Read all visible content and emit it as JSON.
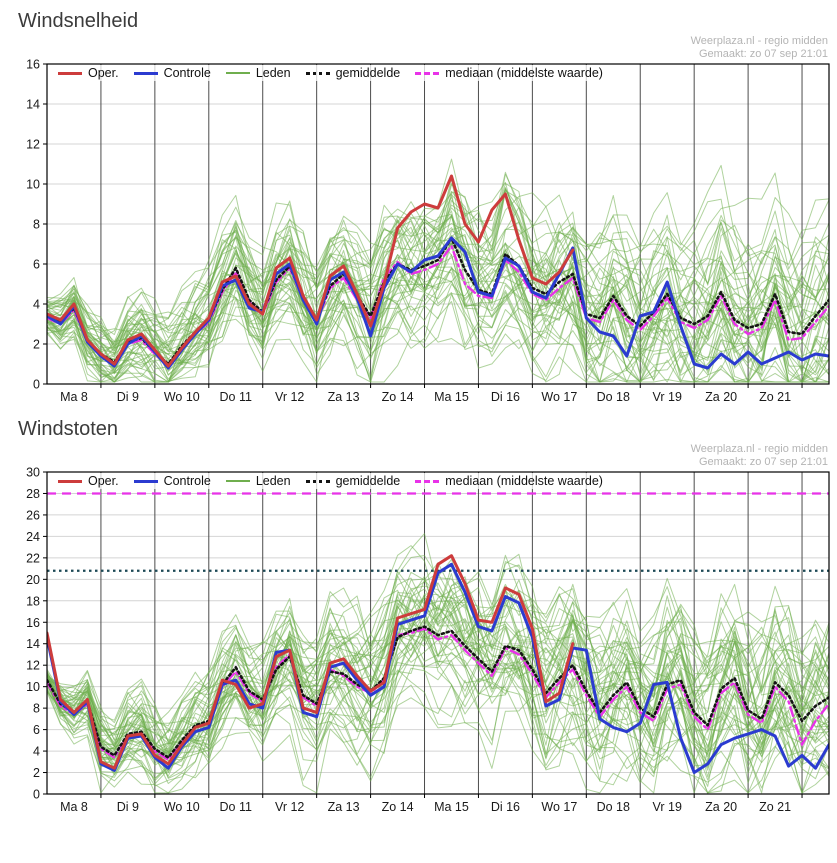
{
  "watermark": {
    "line1": "Weerplaza.nl - regio midden",
    "line2": "Gemaakt: zo 07 sep 21:01"
  },
  "legend": {
    "items": [
      {
        "key": "oper",
        "label": "Oper."
      },
      {
        "key": "controle",
        "label": "Controle"
      },
      {
        "key": "leden",
        "label": "Leden"
      },
      {
        "key": "gemiddelde",
        "label": "gemiddelde"
      },
      {
        "key": "mediaan",
        "label": "mediaan (middelste waarde)"
      }
    ]
  },
  "colors": {
    "oper": "#cd3c3c",
    "controle": "#2b3bd0",
    "leden": "#6fae4e",
    "gemiddelde": "#141414",
    "mediaan": "#e832e8",
    "threshold_dark": "#1d4956",
    "grid": "#d4d4d4",
    "dayline": "#4c4c4c",
    "axis": "#000000",
    "tick_text": "#1a1a1a"
  },
  "chart_data": [
    {
      "type": "line",
      "title": "Windsnelheid",
      "ylim": [
        0,
        16
      ],
      "ytick_step": 2,
      "points_per_day": 4,
      "n_points": 59,
      "x_day_labels": [
        "Ma 8",
        "Di 9",
        "Wo 10",
        "Do 11",
        "Vr 12",
        "Za 13",
        "Zo 14",
        "Ma 15",
        "Di 16",
        "Wo 17",
        "Do 18",
        "Vr 19",
        "Za 20",
        "Zo 21"
      ],
      "series": [
        {
          "key": "oper",
          "name": "Oper.",
          "values": [
            3.5,
            3.2,
            4.0,
            2.2,
            1.5,
            1.0,
            2.2,
            2.5,
            1.7,
            0.9,
            1.8,
            2.6,
            3.3,
            5.1,
            5.4,
            4.0,
            3.5,
            5.8,
            6.3,
            4.4,
            3.2,
            5.4,
            5.9,
            4.5,
            2.9,
            5.0,
            7.8,
            8.6,
            9.0,
            8.8,
            10.4,
            8.0,
            7.1,
            8.7,
            9.5,
            7.2,
            5.3,
            5.0,
            5.6,
            6.7
          ]
        },
        {
          "key": "controle",
          "name": "Controle",
          "values": [
            3.4,
            3.0,
            3.9,
            2.1,
            1.4,
            0.9,
            2.0,
            2.4,
            1.6,
            0.8,
            1.7,
            2.5,
            3.2,
            4.9,
            5.2,
            3.8,
            3.6,
            5.5,
            6.0,
            4.2,
            3.0,
            5.2,
            5.6,
            4.3,
            2.4,
            4.8,
            6.0,
            5.6,
            6.2,
            6.4,
            7.3,
            6.6,
            4.6,
            4.4,
            6.3,
            5.9,
            4.6,
            4.3,
            5.5,
            6.8,
            3.3,
            2.6,
            2.4,
            1.4,
            3.4,
            3.6,
            5.1,
            2.9,
            1.0,
            0.8,
            1.5,
            1.0,
            1.6,
            1.0,
            1.3,
            1.6,
            1.2,
            1.5,
            1.4
          ]
        },
        {
          "key": "gemiddelde",
          "name": "gemiddelde",
          "values": [
            3.4,
            3.1,
            3.8,
            2.2,
            1.5,
            1.1,
            2.1,
            2.3,
            1.6,
            1.0,
            1.9,
            2.6,
            3.2,
            4.7,
            5.8,
            4.2,
            3.6,
            5.2,
            5.9,
            4.3,
            3.2,
            4.9,
            5.5,
            4.4,
            3.4,
            5.1,
            6.0,
            5.7,
            5.9,
            6.2,
            7.3,
            5.7,
            4.7,
            4.5,
            6.5,
            5.9,
            4.8,
            4.5,
            5.1,
            5.5,
            3.5,
            3.3,
            4.4,
            3.4,
            2.9,
            3.6,
            4.5,
            3.3,
            3.0,
            3.4,
            4.6,
            3.2,
            2.8,
            3.0,
            4.5,
            2.6,
            2.5,
            3.4,
            4.2
          ]
        },
        {
          "key": "mediaan",
          "name": "mediaan (middelste waarde)",
          "values": [
            3.3,
            3.0,
            3.7,
            2.1,
            1.4,
            1.0,
            2.0,
            2.2,
            1.5,
            0.9,
            1.8,
            2.5,
            3.1,
            4.6,
            5.6,
            4.1,
            3.5,
            5.1,
            5.8,
            4.2,
            3.1,
            4.8,
            5.3,
            4.2,
            3.3,
            5.3,
            6.1,
            5.5,
            5.7,
            6.0,
            6.9,
            5.0,
            4.4,
            4.3,
            6.2,
            5.6,
            4.5,
            4.2,
            4.8,
            5.3,
            3.3,
            3.1,
            4.2,
            3.2,
            2.7,
            3.4,
            4.3,
            3.1,
            2.8,
            3.2,
            4.4,
            3.0,
            2.5,
            2.8,
            4.2,
            2.2,
            2.3,
            3.1,
            3.9
          ]
        }
      ],
      "ensemble": {
        "name": "Leden",
        "count": 48,
        "seed": 13,
        "spread_start": 0.9,
        "spread_end": 4.5
      },
      "thresholds": []
    },
    {
      "type": "line",
      "title": "Windstoten",
      "ylim": [
        0,
        30
      ],
      "ytick_step": 2,
      "points_per_day": 4,
      "n_points": 59,
      "x_day_labels": [
        "Ma 8",
        "Di 9",
        "Wo 10",
        "Do 11",
        "Vr 12",
        "Za 13",
        "Zo 14",
        "Ma 15",
        "Di 16",
        "Wo 17",
        "Do 18",
        "Vr 19",
        "Za 20",
        "Zo 21"
      ],
      "series": [
        {
          "key": "oper",
          "name": "Oper.",
          "values": [
            15.0,
            8.8,
            7.6,
            8.8,
            3.0,
            2.4,
            5.4,
            5.6,
            3.6,
            2.8,
            4.6,
            6.2,
            6.6,
            10.6,
            10.2,
            8.0,
            8.4,
            12.8,
            13.4,
            8.0,
            7.6,
            12.2,
            12.6,
            11.0,
            9.6,
            10.4,
            16.4,
            16.8,
            17.2,
            21.4,
            22.2,
            19.6,
            16.2,
            16.0,
            19.2,
            18.6,
            15.4,
            8.6,
            9.4,
            14.0
          ]
        },
        {
          "key": "controle",
          "name": "Controle",
          "values": [
            14.6,
            8.6,
            7.4,
            8.6,
            2.8,
            2.2,
            5.2,
            5.4,
            3.4,
            2.4,
            4.4,
            5.8,
            6.2,
            10.2,
            10.6,
            8.4,
            8.0,
            13.2,
            13.4,
            7.6,
            7.2,
            11.8,
            12.2,
            10.6,
            9.2,
            10.0,
            15.8,
            16.2,
            16.6,
            20.6,
            21.4,
            18.8,
            15.6,
            15.2,
            18.4,
            17.8,
            14.6,
            8.2,
            8.8,
            13.6,
            13.4,
            7.0,
            6.2,
            5.8,
            6.6,
            10.2,
            10.4,
            5.2,
            2.0,
            2.8,
            4.6,
            5.2,
            5.6,
            6.0,
            5.4,
            2.6,
            3.6,
            2.4,
            4.6
          ]
        },
        {
          "key": "gemiddelde",
          "name": "gemiddelde",
          "values": [
            10.6,
            8.4,
            7.6,
            8.6,
            4.4,
            3.6,
            5.6,
            5.8,
            4.2,
            3.4,
            5.0,
            6.4,
            6.8,
            10.2,
            11.8,
            9.6,
            8.8,
            11.6,
            12.8,
            9.2,
            8.4,
            11.4,
            11.2,
            10.2,
            9.6,
            10.8,
            14.6,
            15.2,
            15.6,
            14.8,
            15.2,
            13.8,
            12.6,
            11.4,
            13.8,
            13.4,
            11.6,
            9.4,
            10.8,
            12.0,
            9.6,
            7.6,
            9.2,
            10.4,
            8.0,
            7.2,
            10.2,
            10.6,
            7.6,
            6.4,
            9.8,
            10.8,
            7.8,
            7.0,
            10.4,
            9.2,
            6.8,
            8.2,
            9.0
          ]
        },
        {
          "key": "mediaan",
          "name": "mediaan (middelste waarde)",
          "values": [
            10.4,
            8.2,
            7.4,
            8.4,
            4.2,
            3.4,
            5.4,
            5.6,
            4.0,
            3.2,
            4.8,
            6.2,
            6.6,
            10.0,
            11.4,
            9.4,
            8.6,
            11.8,
            13.0,
            9.0,
            8.2,
            11.6,
            11.0,
            10.0,
            9.4,
            10.6,
            14.8,
            15.0,
            15.4,
            14.4,
            14.8,
            13.4,
            12.2,
            11.0,
            13.6,
            13.0,
            11.2,
            9.0,
            10.4,
            11.6,
            9.2,
            7.2,
            8.8,
            10.0,
            7.6,
            6.8,
            9.8,
            10.2,
            7.2,
            6.0,
            9.4,
            10.4,
            7.4,
            6.6,
            10.0,
            8.6,
            4.6,
            6.8,
            8.4
          ]
        }
      ],
      "ensemble": {
        "name": "Leden",
        "count": 48,
        "seed": 29,
        "spread_start": 1.4,
        "spread_end": 9.0
      },
      "thresholds": [
        {
          "value": 28,
          "style": "dashed",
          "color_key": "mediaan"
        },
        {
          "value": 20.8,
          "style": "dotted",
          "color_key": "threshold_dark"
        }
      ]
    }
  ]
}
